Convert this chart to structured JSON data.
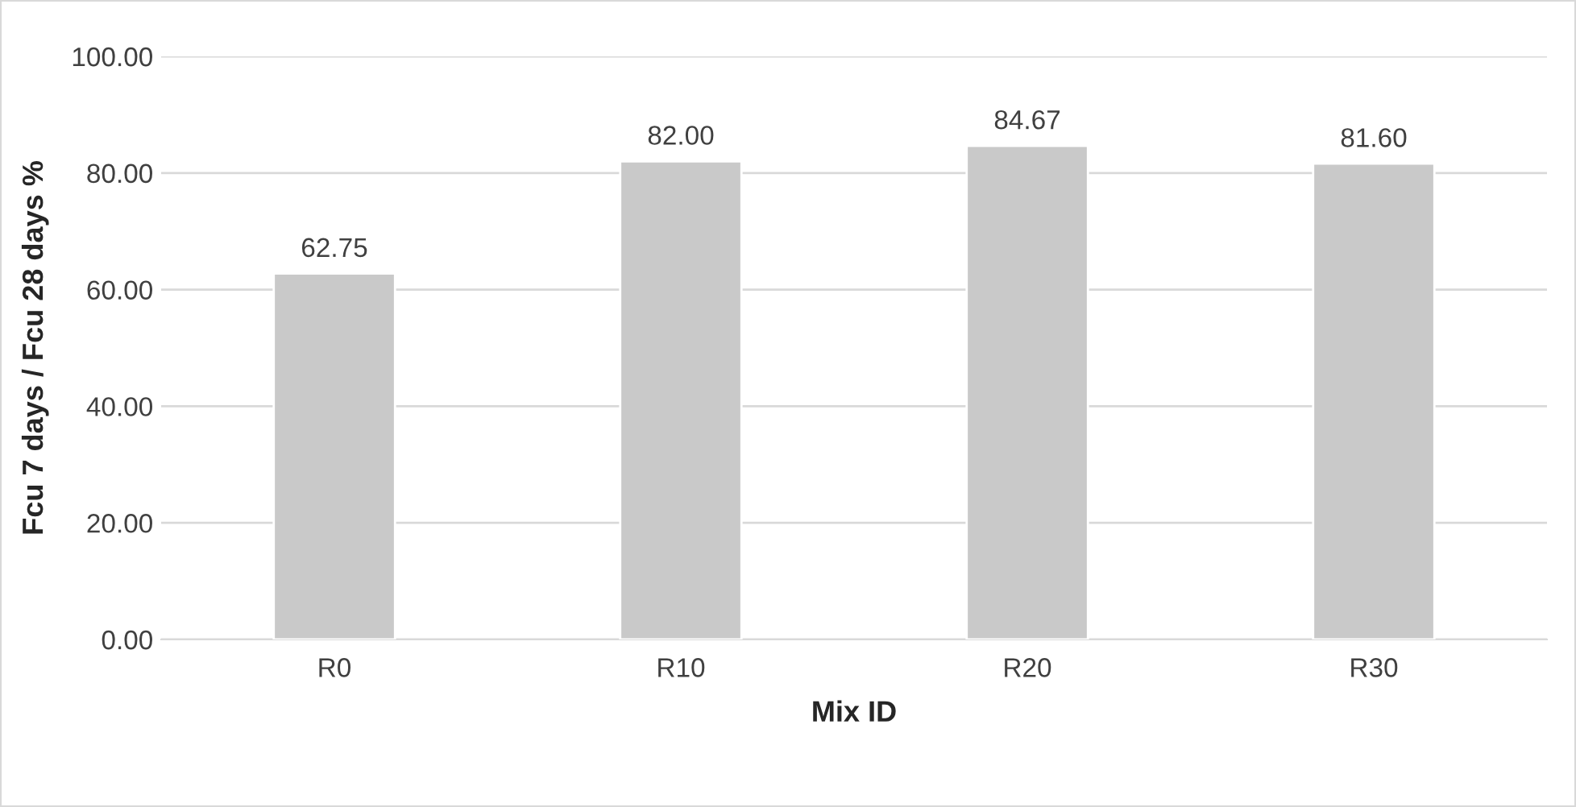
{
  "chart_data": {
    "type": "bar",
    "categories": [
      "R0",
      "R10",
      "R20",
      "R30"
    ],
    "values": [
      62.75,
      82.0,
      84.67,
      81.6
    ],
    "value_labels": [
      "62.75",
      "82.00",
      "84.67",
      "81.60"
    ],
    "color": "#c9c9c9",
    "xlabel": "Mix ID",
    "ylabel": "Fcu 7 days / Fcu 28 days %",
    "ylim": [
      0,
      100
    ],
    "yticks": [
      {
        "value": 0,
        "label": "0.00"
      },
      {
        "value": 20,
        "label": "20.00"
      },
      {
        "value": 40,
        "label": "40.00"
      },
      {
        "value": 60,
        "label": "60.00"
      },
      {
        "value": 80,
        "label": "80.00"
      },
      {
        "value": 100,
        "label": "100.00"
      }
    ],
    "grid": "y",
    "legend": false
  }
}
